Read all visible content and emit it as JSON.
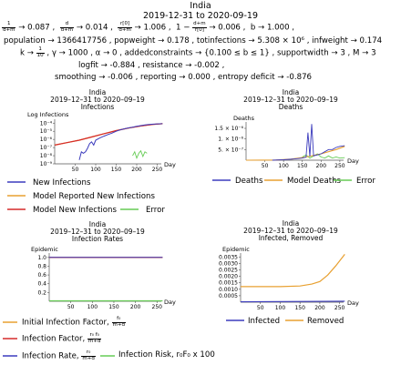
{
  "header": {
    "country": "India",
    "date_range": "2019-12-31 to 2020-09-19"
  },
  "params": {
    "row1": {
      "f1_num": "1",
      "f1_den": "d+m",
      "f1_val": "→ 0.087 ,",
      "f2_num": "d",
      "f2_den": "d+m",
      "f2_val": "→ 0.014 ,",
      "f3_num": "r[0]",
      "f3_den": "d+m",
      "f3_val": "→ 1.006 ,",
      "f4_pre": "1 −",
      "f4_num": "d+m",
      "f4_den": "r[0]",
      "f4_val": "→ 0.006 ,",
      "b": "b → 1.000 ,"
    },
    "row2": "population → 1366417756 ,  popweight → 0.178 ,  totinfections → 5.308 × 10⁶ ,  infweight → 0.174",
    "row3": {
      "k_pre": "k →",
      "k_num": "1",
      "k_den": "10",
      "rest": ",  γ → 1000 ,  α → 0 ,  addedconstraints → {0.100 ≤ b ≤ 1} ,  supportwidth → 3 ,  M → 3"
    },
    "row4": "logfit → -0.884 ,  resistance → -0.002 ,",
    "row5": "smoothing → -0.006 ,  reporting → 0.000 ,  entropy deficit → -0.876"
  },
  "colors": {
    "blue": "#3b3bbd",
    "orange": "#e8a030",
    "red": "#d62a2a",
    "green": "#66cc55",
    "axis": "#555555"
  },
  "charts": {
    "infections": {
      "title1": "India",
      "title2": "2019–12–31 to 2020–09–19",
      "title3": "Infections",
      "ylabel": "Log Infections",
      "xlabel": "Day",
      "yticks": [
        "10⁻⁴",
        "10⁻⁵",
        "10⁻⁶",
        "10⁻⁷",
        "10⁻⁸",
        "10⁻⁹"
      ],
      "xticks": [
        "50",
        "100",
        "150",
        "200",
        "250"
      ],
      "legend": [
        "New Infections",
        "Model Reported New Infections",
        "Model New Infections",
        "Error"
      ]
    },
    "deaths": {
      "title1": "India",
      "title2": "2019–12–31 to 2020–09–19",
      "title3": "Deaths",
      "ylabel": "Deaths",
      "xlabel": "Day",
      "yticks": [
        "1.5 × 10⁻⁶",
        "1. × 10⁻⁶",
        "5. × 10⁻⁷"
      ],
      "xticks": [
        "50",
        "100",
        "150",
        "200",
        "250"
      ],
      "legend": [
        "Deaths",
        "Model Deaths",
        "Error"
      ]
    },
    "rates": {
      "title1": "India",
      "title2": "2019–12–31 to 2020–09–19",
      "title3": "Infection Rates",
      "ylabel": "Epidemic",
      "xlabel": "Day",
      "yticks": [
        "1.0",
        "0.8",
        "0.6",
        "0.4",
        "0.2"
      ],
      "xticks": [
        "50",
        "100",
        "150",
        "200",
        "250"
      ],
      "legend": {
        "l1": "Initial Infection Factor,",
        "l1_num": "f₀",
        "l1_den": "m+d",
        "l2": "Infection Factor,",
        "l2_num": "r₀ f₀",
        "l2_den": "m+d",
        "l3": "Infection Rate,",
        "l3_num": "r₀",
        "l3_den": "m+d",
        "l4": "Infection Risk, r₀F₀ x 100"
      }
    },
    "removed": {
      "title1": "India",
      "title2": "2019–12–31 to 2020–09–19",
      "title3": "Infected, Removed",
      "ylabel": "Epidemic",
      "xlabel": "Day",
      "yticks": [
        "0.0035",
        "0.0030",
        "0.0025",
        "0.0020",
        "0.0015",
        "0.0010",
        "0.0005"
      ],
      "xticks": [
        "50",
        "100",
        "150",
        "200",
        "250"
      ],
      "legend": [
        "Infected",
        "Removed"
      ]
    }
  },
  "chart_data": [
    {
      "type": "line",
      "title": "Infections",
      "xlabel": "Day",
      "ylabel": "Log Infections",
      "yscale": "log",
      "ylim": [
        1e-09,
        0.0003
      ],
      "xlim": [
        0,
        260
      ],
      "series": [
        {
          "name": "New Infections",
          "color": "#3b3bbd",
          "x": [
            60,
            65,
            70,
            75,
            80,
            85,
            90,
            95,
            100,
            110,
            120,
            130,
            140,
            150,
            160,
            170,
            180,
            190,
            200,
            210,
            220,
            230,
            240,
            250,
            263
          ],
          "y": [
            3e-09,
            3e-08,
            2e-08,
            3e-08,
            8e-08,
            3e-07,
            5e-07,
            2e-07,
            8e-07,
            1.5e-06,
            2.5e-06,
            4e-06,
            6e-06,
            1e-05,
            1.5e-05,
            2e-05,
            2.6e-05,
            3.2e-05,
            4e-05,
            5e-05,
            6e-05,
            7e-05,
            7.5e-05,
            8e-05,
            8.5e-05
          ]
        },
        {
          "name": "Model Reported New Infections",
          "color": "#e8a030",
          "x": [
            0,
            30,
            60,
            90,
            120,
            150,
            180,
            210,
            240,
            263
          ],
          "y": [
            2e-07,
            4e-07,
            8e-07,
            2e-06,
            5e-06,
            1.2e-05,
            2.5e-05,
            4.5e-05,
            7e-05,
            8.5e-05
          ]
        },
        {
          "name": "Model New Infections",
          "color": "#d62a2a",
          "x": [
            0,
            30,
            60,
            90,
            120,
            150,
            180,
            210,
            240,
            263
          ],
          "y": [
            2e-07,
            4e-07,
            8e-07,
            2e-06,
            5e-06,
            1.2e-05,
            2.5e-05,
            4.5e-05,
            7e-05,
            8.5e-05
          ]
        },
        {
          "name": "Error",
          "color": "#66cc55",
          "x": [
            190,
            195,
            200,
            205,
            210,
            215,
            220,
            225
          ],
          "y": [
            1e-08,
            3e-08,
            5e-09,
            2e-08,
            4e-08,
            8e-09,
            3e-08,
            2e-08
          ]
        }
      ]
    },
    {
      "type": "line",
      "title": "Deaths",
      "xlabel": "Day",
      "ylabel": "Deaths",
      "xlim": [
        0,
        260
      ],
      "ylim": [
        0,
        1.8e-06
      ],
      "series": [
        {
          "name": "Deaths",
          "color": "#3b3bbd",
          "x": [
            70,
            100,
            130,
            150,
            160,
            165,
            170,
            175,
            180,
            190,
            200,
            210,
            220,
            230,
            240,
            250,
            263
          ],
          "y": [
            0,
            2e-08,
            6e-08,
            1e-07,
            1.4e-07,
            1.3e-06,
            1.8e-07,
            1.7e-06,
            2e-07,
            2.5e-07,
            3e-07,
            4e-07,
            5e-07,
            5e-07,
            6e-07,
            6.5e-07,
            6.8e-07
          ]
        },
        {
          "name": "Model Deaths",
          "color": "#e8a030",
          "x": [
            0,
            80,
            120,
            160,
            200,
            240,
            263
          ],
          "y": [
            0,
            1e-08,
            5e-08,
            1.5e-07,
            3e-07,
            5e-07,
            6.5e-07
          ]
        },
        {
          "name": "Error",
          "color": "#66cc55",
          "x": [
            150,
            160,
            170,
            180,
            190,
            200,
            210,
            220,
            230,
            240,
            250,
            263
          ],
          "y": [
            1.5e-07,
            2.5e-07,
            1e-07,
            2e-07,
            3e-07,
            1.5e-07,
            1e-07,
            2e-07,
            1e-07,
            1.5e-07,
            1e-07,
            1.2e-07
          ]
        }
      ]
    },
    {
      "type": "line",
      "title": "Infection Rates",
      "xlabel": "Day",
      "ylabel": "Epidemic",
      "xlim": [
        0,
        260
      ],
      "ylim": [
        0,
        1.1
      ],
      "series": [
        {
          "name": "Initial Infection Factor",
          "color": "#e8a030",
          "x": [
            0,
            263
          ],
          "y": [
            1.0,
            1.0
          ]
        },
        {
          "name": "Infection Factor",
          "color": "#d62a2a",
          "x": [
            0,
            263
          ],
          "y": [
            1.0,
            1.0
          ]
        },
        {
          "name": "Infection Rate",
          "color": "#3b3bbd",
          "x": [
            0,
            263
          ],
          "y": [
            1.0,
            1.0
          ]
        },
        {
          "name": "Infection Risk, r₀F₀ x 100",
          "color": "#66cc55",
          "x": [
            0,
            263
          ],
          "y": [
            0.01,
            0.01
          ]
        }
      ]
    },
    {
      "type": "line",
      "title": "Infected, Removed",
      "xlabel": "Day",
      "ylabel": "Epidemic",
      "xlim": [
        0,
        260
      ],
      "ylim": [
        0,
        0.0038
      ],
      "series": [
        {
          "name": "Infected",
          "color": "#3b3bbd",
          "x": [
            0,
            263
          ],
          "y": [
            3e-05,
            8e-05
          ]
        },
        {
          "name": "Removed",
          "color": "#e8a030",
          "x": [
            0,
            100,
            150,
            180,
            200,
            220,
            240,
            263
          ],
          "y": [
            0.0012,
            0.0012,
            0.00125,
            0.0014,
            0.0016,
            0.0021,
            0.0028,
            0.0037
          ]
        }
      ]
    }
  ]
}
